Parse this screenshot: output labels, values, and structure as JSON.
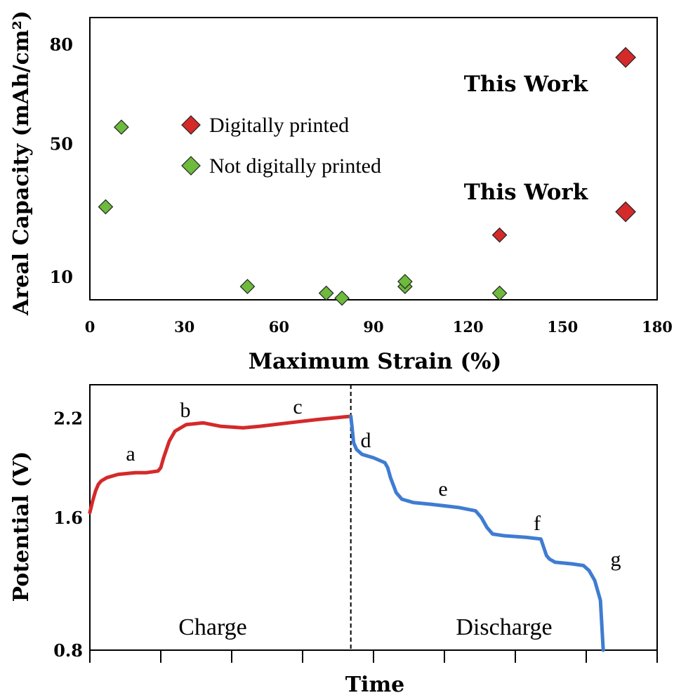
{
  "colors": {
    "digital": "#d42a2a",
    "not_digital": "#6dba3c",
    "charge": "#d42a2a",
    "discharge": "#3f7cd2"
  },
  "chart_data": [
    {
      "type": "scatter",
      "xlabel": "Maximum Strain (%)",
      "ylabel": "Areal Capacity (mAh/cm²)",
      "xlim": [
        0,
        180
      ],
      "ylim": [
        3,
        88
      ],
      "x_ticks": [
        0,
        30,
        60,
        90,
        120,
        150,
        180
      ],
      "y_ticks": [
        10,
        50,
        80
      ],
      "grid": false,
      "legend_position": "upper-left",
      "series": [
        {
          "name": "Digitally printed",
          "color": "#d42a2a",
          "points": [
            [
              130,
              22.5
            ]
          ],
          "highlight_points": [
            [
              170,
              76
            ],
            [
              170,
              29.5
            ]
          ]
        },
        {
          "name": "Not digitally printed",
          "color": "#6dba3c",
          "points": [
            [
              5,
              31
            ],
            [
              10,
              55
            ],
            [
              50,
              7
            ],
            [
              75,
              5
            ],
            [
              80,
              3.5
            ],
            [
              100,
              7
            ],
            [
              100,
              8.5
            ],
            [
              130,
              5
            ]
          ]
        }
      ],
      "annotations": [
        "This Work",
        "This Work"
      ]
    },
    {
      "type": "line",
      "xlabel": "Time",
      "ylabel": "Potential (V)",
      "ylim": [
        0.8,
        2.4
      ],
      "y_ticks": [
        0.8,
        1.6,
        2.2
      ],
      "x_tick_count": 9,
      "grid": false,
      "divider_x": 0.46,
      "charge_label": "Charge",
      "discharge_label": "Discharge",
      "step_labels": [
        "a",
        "b",
        "c",
        "d",
        "e",
        "f",
        "g"
      ],
      "series": [
        {
          "name": "Charge",
          "color": "#d42a2a",
          "x": [
            0.0,
            0.005,
            0.01,
            0.015,
            0.02,
            0.03,
            0.05,
            0.08,
            0.1,
            0.12,
            0.125,
            0.13,
            0.14,
            0.15,
            0.16,
            0.17,
            0.2,
            0.23,
            0.27,
            0.3,
            0.35,
            0.4,
            0.43,
            0.46
          ],
          "y": [
            1.63,
            1.7,
            1.76,
            1.8,
            1.82,
            1.84,
            1.86,
            1.87,
            1.87,
            1.88,
            1.9,
            1.96,
            2.06,
            2.12,
            2.14,
            2.16,
            2.17,
            2.15,
            2.14,
            2.15,
            2.17,
            2.19,
            2.2,
            2.21
          ]
        },
        {
          "name": "Discharge",
          "color": "#3f7cd2",
          "x": [
            0.46,
            0.462,
            0.465,
            0.47,
            0.48,
            0.5,
            0.52,
            0.525,
            0.53,
            0.54,
            0.55,
            0.57,
            0.6,
            0.65,
            0.68,
            0.69,
            0.7,
            0.71,
            0.73,
            0.77,
            0.795,
            0.8,
            0.805,
            0.81,
            0.82,
            0.85,
            0.87,
            0.88,
            0.89,
            0.9,
            0.905
          ],
          "y": [
            2.21,
            2.15,
            2.05,
            2.01,
            1.98,
            1.96,
            1.93,
            1.9,
            1.84,
            1.75,
            1.71,
            1.69,
            1.68,
            1.66,
            1.64,
            1.6,
            1.54,
            1.5,
            1.49,
            1.48,
            1.47,
            1.42,
            1.37,
            1.35,
            1.33,
            1.32,
            1.31,
            1.28,
            1.22,
            1.1,
            0.8
          ]
        }
      ]
    }
  ]
}
